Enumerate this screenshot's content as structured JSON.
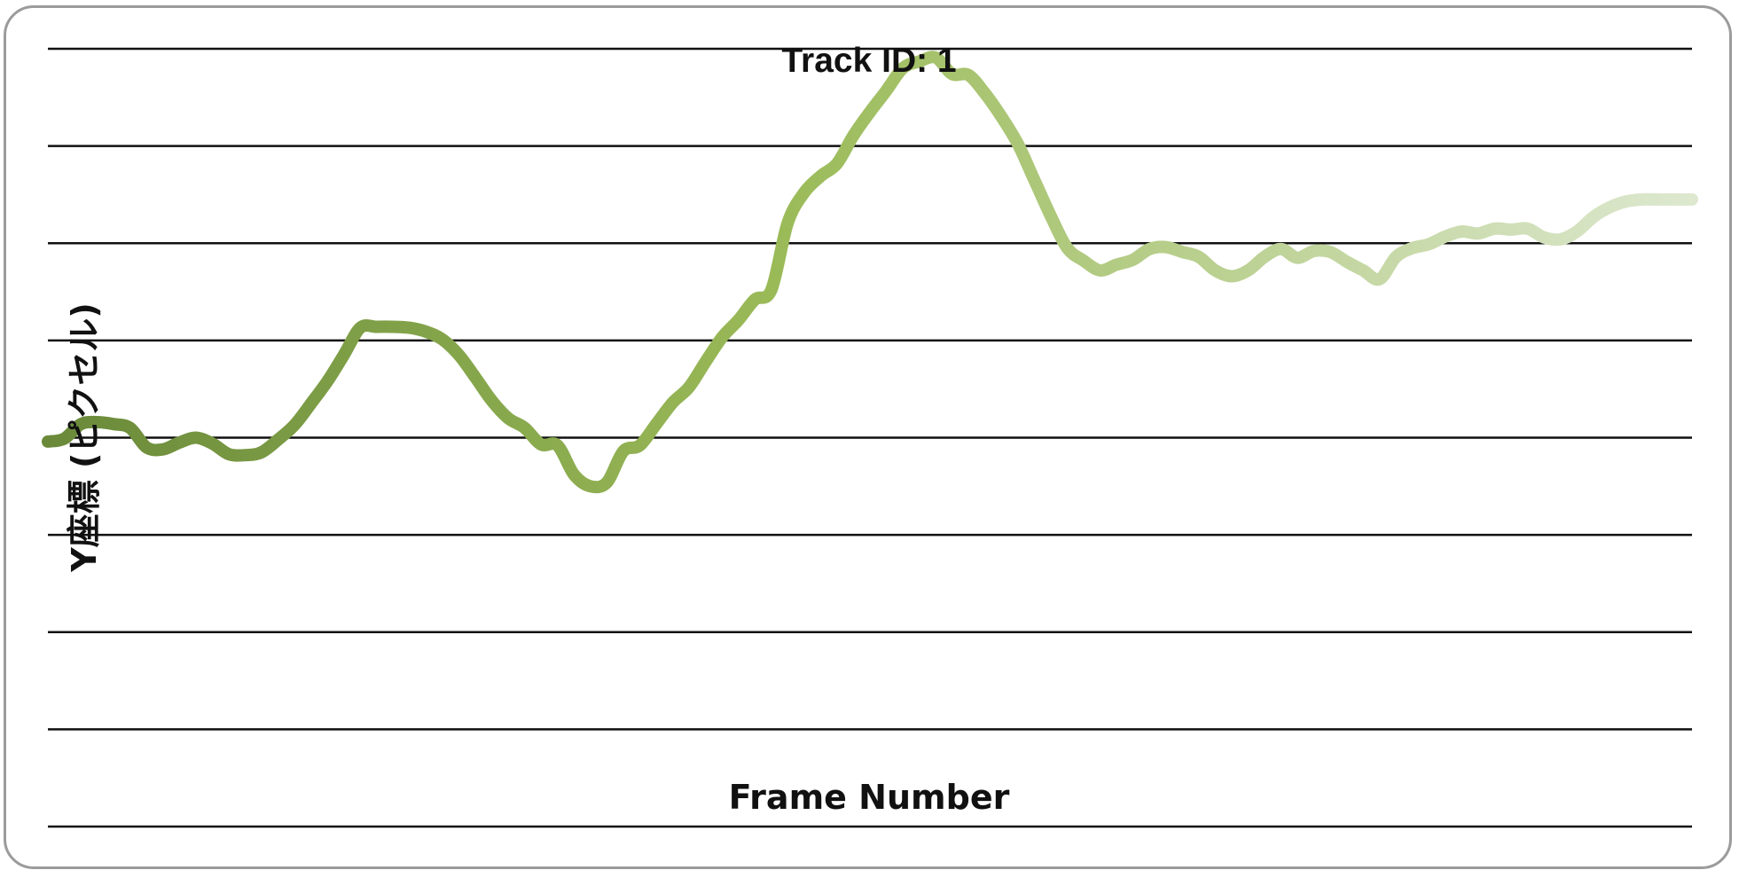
{
  "chart_data": {
    "type": "line",
    "title": "Track ID: 1",
    "xlabel": "Frame Number",
    "ylabel": "Y座標 (ピクセル)",
    "grid": true,
    "legend": "none",
    "ylim": [
      0,
      8
    ],
    "xlim": [
      0,
      100
    ],
    "line_color_gradient": [
      "#6a8a3a",
      "#9bbb59",
      "#dde8cf"
    ],
    "x": [
      0,
      1,
      2,
      3,
      4,
      5,
      6,
      7,
      8,
      9,
      10,
      11,
      12,
      13,
      14,
      15,
      16,
      17,
      18,
      19,
      20,
      21,
      22,
      23,
      24,
      25,
      26,
      27,
      28,
      29,
      30,
      31,
      32,
      33,
      34,
      35,
      36,
      37,
      38,
      39,
      40,
      41,
      42,
      43,
      44,
      45,
      46,
      47,
      48,
      49,
      50,
      51,
      52,
      53,
      54,
      55,
      56,
      57,
      58,
      59,
      60,
      61,
      62,
      63,
      64,
      65,
      66,
      67,
      68,
      69,
      70,
      71,
      72,
      73,
      74,
      75,
      76,
      77,
      78,
      79,
      80,
      81,
      82,
      83,
      84,
      85,
      86,
      87,
      88,
      89,
      90,
      91,
      92,
      93,
      94,
      95,
      96,
      97,
      98,
      99,
      100
    ],
    "values": [
      3.96,
      3.99,
      4.14,
      4.16,
      4.14,
      4.1,
      3.9,
      3.88,
      3.95,
      4.0,
      3.94,
      3.83,
      3.82,
      3.85,
      3.98,
      4.13,
      4.35,
      4.58,
      4.85,
      5.13,
      5.14,
      5.14,
      5.13,
      5.09,
      5.01,
      4.85,
      4.62,
      4.38,
      4.2,
      4.1,
      3.93,
      3.92,
      3.62,
      3.5,
      3.54,
      3.86,
      3.92,
      4.14,
      4.36,
      4.52,
      4.78,
      5.03,
      5.21,
      5.42,
      5.52,
      6.21,
      6.52,
      6.69,
      6.82,
      7.11,
      7.35,
      7.57,
      7.8,
      7.87,
      7.91,
      7.74,
      7.73,
      7.54,
      7.3,
      7.02,
      6.65,
      6.28,
      5.95,
      5.82,
      5.72,
      5.78,
      5.83,
      5.94,
      5.96,
      5.91,
      5.86,
      5.72,
      5.66,
      5.72,
      5.86,
      5.94,
      5.85,
      5.92,
      5.91,
      5.81,
      5.72,
      5.63,
      5.86,
      5.95,
      5.99,
      6.07,
      6.12,
      6.1,
      6.15,
      6.14,
      6.15,
      6.06,
      6.04,
      6.12,
      6.27,
      6.37,
      6.43,
      6.45,
      6.45,
      6.45,
      6.45
    ]
  }
}
